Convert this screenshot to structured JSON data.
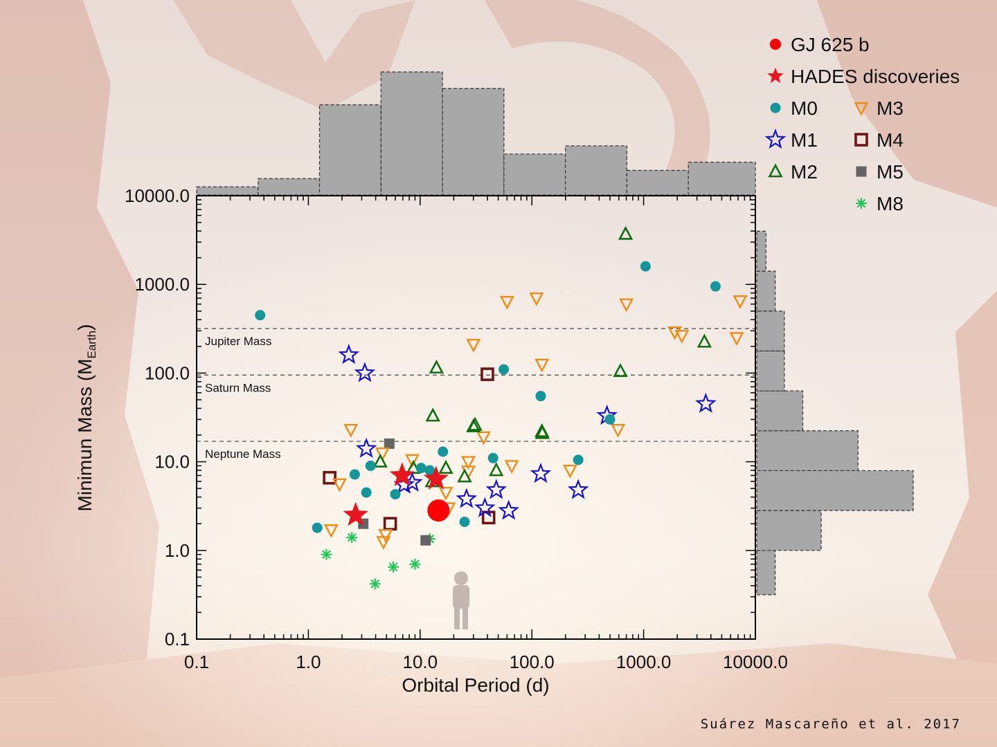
{
  "credit": "Suárez Mascareño et al. 2017",
  "chart_data": {
    "type": "scatter",
    "xlabel": "Orbital Period (d)",
    "ylabel_main": "Minimun Mass (M",
    "ylabel_sub": "Earth",
    "ylabel_close": ")",
    "xscale": "log",
    "yscale": "log",
    "xlim": [
      0.1,
      10000
    ],
    "ylim": [
      0.1,
      10000
    ],
    "xticks": [
      0.1,
      1,
      10,
      100,
      1000,
      10000
    ],
    "xtick_labels": [
      "0.1",
      "1.0",
      "10.0",
      "100.0",
      "1000.0",
      "10000.0"
    ],
    "yticks": [
      0.1,
      1,
      10,
      100,
      1000,
      10000
    ],
    "ytick_labels": [
      "0.1",
      "1.0",
      "10.0",
      "100.0",
      "1000.0",
      "10000.0"
    ],
    "reference_lines": [
      {
        "label": "Jupiter Mass",
        "y": 318
      },
      {
        "label": "Saturn Mass",
        "y": 95
      },
      {
        "label": "Neptune Mass",
        "y": 17
      }
    ],
    "legend_position": "top-right",
    "series": [
      {
        "name": "GJ 625 b",
        "marker": "circle-large",
        "color": "#ff0000",
        "points": [
          [
            14.6,
            2.82
          ]
        ]
      },
      {
        "name": "HADES discoveries",
        "marker": "star-filled",
        "color": "#e8141e",
        "points": [
          [
            2.65,
            2.5
          ],
          [
            6.9,
            7.0
          ],
          [
            13.9,
            6.4
          ]
        ]
      },
      {
        "name": "M0",
        "marker": "circle",
        "color": "#14969a",
        "points": [
          [
            0.37,
            450
          ],
          [
            1.2,
            1.8
          ],
          [
            2.6,
            7.2
          ],
          [
            3.3,
            4.5
          ],
          [
            3.6,
            9
          ],
          [
            6,
            4.3
          ],
          [
            7,
            7
          ],
          [
            10.2,
            8.5
          ],
          [
            12.2,
            8
          ],
          [
            16,
            13
          ],
          [
            25,
            2.1
          ],
          [
            45,
            11
          ],
          [
            56,
            110
          ],
          [
            120,
            55
          ],
          [
            260,
            10.5
          ],
          [
            500,
            30
          ],
          [
            1040,
            1600
          ],
          [
            4400,
            950
          ]
        ]
      },
      {
        "name": "M1",
        "marker": "star-open",
        "color": "#1414cc",
        "points": [
          [
            2.3,
            160
          ],
          [
            3.2,
            100
          ],
          [
            3.3,
            14
          ],
          [
            7.2,
            5.5
          ],
          [
            8.5,
            5.8
          ],
          [
            26,
            3.8
          ],
          [
            38,
            3.0
          ],
          [
            48,
            4.8
          ],
          [
            62,
            2.8
          ],
          [
            120,
            7.3
          ],
          [
            260,
            4.8
          ],
          [
            470,
            33
          ],
          [
            3600,
            45
          ]
        ]
      },
      {
        "name": "M2",
        "marker": "triangle-up-open",
        "color": "#0f6e0f",
        "points": [
          [
            4.4,
            10
          ],
          [
            8.7,
            8.5
          ],
          [
            12.8,
            6
          ],
          [
            13,
            33
          ],
          [
            14,
            115
          ],
          [
            17,
            8.5
          ],
          [
            25,
            6.8
          ],
          [
            30,
            25
          ],
          [
            31,
            26
          ],
          [
            48,
            8
          ],
          [
            123,
            22
          ],
          [
            124,
            21
          ],
          [
            620,
            105
          ],
          [
            690,
            3700
          ],
          [
            3500,
            225
          ]
        ]
      },
      {
        "name": "M3",
        "marker": "triangle-down-open",
        "color": "#f08c14",
        "points": [
          [
            1.6,
            1.7
          ],
          [
            1.9,
            5.6
          ],
          [
            2.4,
            23
          ],
          [
            4.6,
            12.5
          ],
          [
            4.7,
            1.25
          ],
          [
            4.9,
            1.5
          ],
          [
            8.5,
            10.5
          ],
          [
            17,
            4.5
          ],
          [
            18,
            3
          ],
          [
            27,
            10
          ],
          [
            27,
            7.8
          ],
          [
            30,
            210
          ],
          [
            37,
            19
          ],
          [
            60,
            640
          ],
          [
            66,
            9
          ],
          [
            110,
            700
          ],
          [
            123,
            125
          ],
          [
            220,
            8
          ],
          [
            590,
            23
          ],
          [
            700,
            600
          ],
          [
            1900,
            290
          ],
          [
            2200,
            265
          ],
          [
            6800,
            250
          ],
          [
            7300,
            650
          ]
        ]
      },
      {
        "name": "M4",
        "marker": "square-open",
        "color": "#6e1414",
        "points": [
          [
            1.55,
            6.6
          ],
          [
            5.4,
            2.0
          ],
          [
            40,
            97
          ],
          [
            41,
            2.35
          ]
        ]
      },
      {
        "name": "M5",
        "marker": "square-filled",
        "color": "#646464",
        "points": [
          [
            3.1,
            2.0
          ],
          [
            5.3,
            16
          ],
          [
            11.2,
            1.3
          ]
        ]
      },
      {
        "name": "M8",
        "marker": "asterisk",
        "color": "#14c850",
        "points": [
          [
            1.45,
            0.9
          ],
          [
            2.45,
            1.4
          ],
          [
            3.95,
            0.42
          ],
          [
            5.75,
            0.65
          ],
          [
            9,
            0.7
          ],
          [
            12.2,
            1.35
          ]
        ]
      }
    ],
    "x_histogram": {
      "bins_log10": [
        -1,
        -0.45,
        0.1,
        0.65,
        1.2,
        1.75,
        2.3,
        2.85,
        3.4,
        4
      ],
      "counts": [
        1,
        2,
        11,
        15,
        13,
        5,
        6,
        3,
        4
      ]
    },
    "y_histogram": {
      "bins_log10": [
        -0.5,
        0,
        0.45,
        0.9,
        1.35,
        1.8,
        2.25,
        2.7,
        3.15,
        3.6
      ],
      "counts": [
        2,
        7,
        17,
        11,
        5,
        3,
        3,
        2,
        1
      ]
    }
  }
}
